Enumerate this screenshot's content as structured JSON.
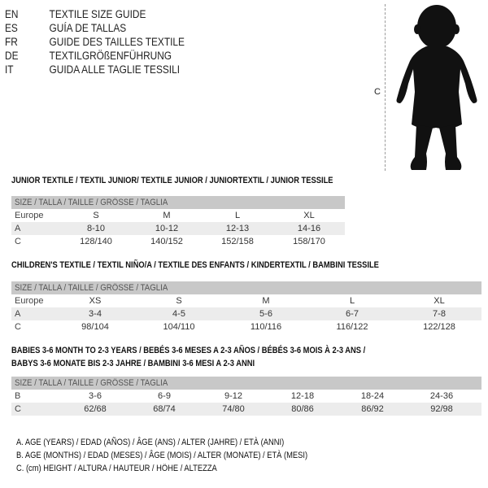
{
  "languages": [
    {
      "code": "EN",
      "title": "TEXTILE SIZE GUIDE"
    },
    {
      "code": "ES",
      "title": "GUÍA DE TALLAS"
    },
    {
      "code": "FR",
      "title": "GUIDE DES TAILLES TEXTILE"
    },
    {
      "code": "DE",
      "title": "TEXTILGRÖßENFÜHRUNG"
    },
    {
      "code": "IT",
      "title": "GUIDA ALLE TAGLIE TESSILI"
    }
  ],
  "figure": {
    "height_marker": "C",
    "icon": "baby-silhouette"
  },
  "size_header": "SIZE / TALLA / TAILLE / GRÖSSE / TAGLIA",
  "junior": {
    "title": "JUNIOR TEXTILE / TEXTIL JUNIOR/ TEXTILE JUNIOR / JUNIORTEXTIL / JUNIOR TESSILE",
    "rows": [
      {
        "label": "Europe",
        "values": [
          "S",
          "M",
          "L",
          "XL"
        ]
      },
      {
        "label": "A",
        "values": [
          "8-10",
          "10-12",
          "12-13",
          "14-16"
        ]
      },
      {
        "label": "C",
        "values": [
          "128/140",
          "140/152",
          "152/158",
          "158/170"
        ]
      }
    ]
  },
  "children": {
    "title": "CHILDREN'S TEXTILE / TEXTIL NIÑO/A / TEXTILE DES ENFANTS / KINDERTEXTIL / BAMBINI TESSILE",
    "rows": [
      {
        "label": "Europe",
        "values": [
          "XS",
          "S",
          "M",
          "L",
          "XL"
        ]
      },
      {
        "label": "A",
        "values": [
          "3-4",
          "4-5",
          "5-6",
          "6-7",
          "7-8"
        ]
      },
      {
        "label": "C",
        "values": [
          "98/104",
          "104/110",
          "110/116",
          "116/122",
          "122/128"
        ]
      }
    ]
  },
  "babies": {
    "title_line1": "BABIES 3-6 MONTH TO 2-3 YEARS / BEBÉS 3-6 MESES A 2-3 AÑOS / BÉBÉS 3-6 MOIS À 2-3 ANS /",
    "title_line2": "BABYS 3-6 MONATE BIS 2-3 JAHRE / BAMBINI 3-6 MESI A 2-3 ANNI",
    "rows": [
      {
        "label": "B",
        "values": [
          "3-6",
          "6-9",
          "9-12",
          "12-18",
          "18-24",
          "24-36"
        ]
      },
      {
        "label": "C",
        "values": [
          "62/68",
          "68/74",
          "74/80",
          "80/86",
          "86/92",
          "92/98"
        ]
      }
    ]
  },
  "legend": [
    "A. AGE (YEARS) / EDAD (AÑOS) / ÂGE (ANS) / ALTER (JAHRE) / ETÀ (ANNI)",
    "B. AGE (MONTHS) / EDAD (MESES) / ÂGE (MOIS) / ALTER (MONATE) / ETÀ (MESI)",
    "C. (cm) HEIGHT / ALTURA / HAUTEUR / HÖHE / ALTEZZA"
  ]
}
